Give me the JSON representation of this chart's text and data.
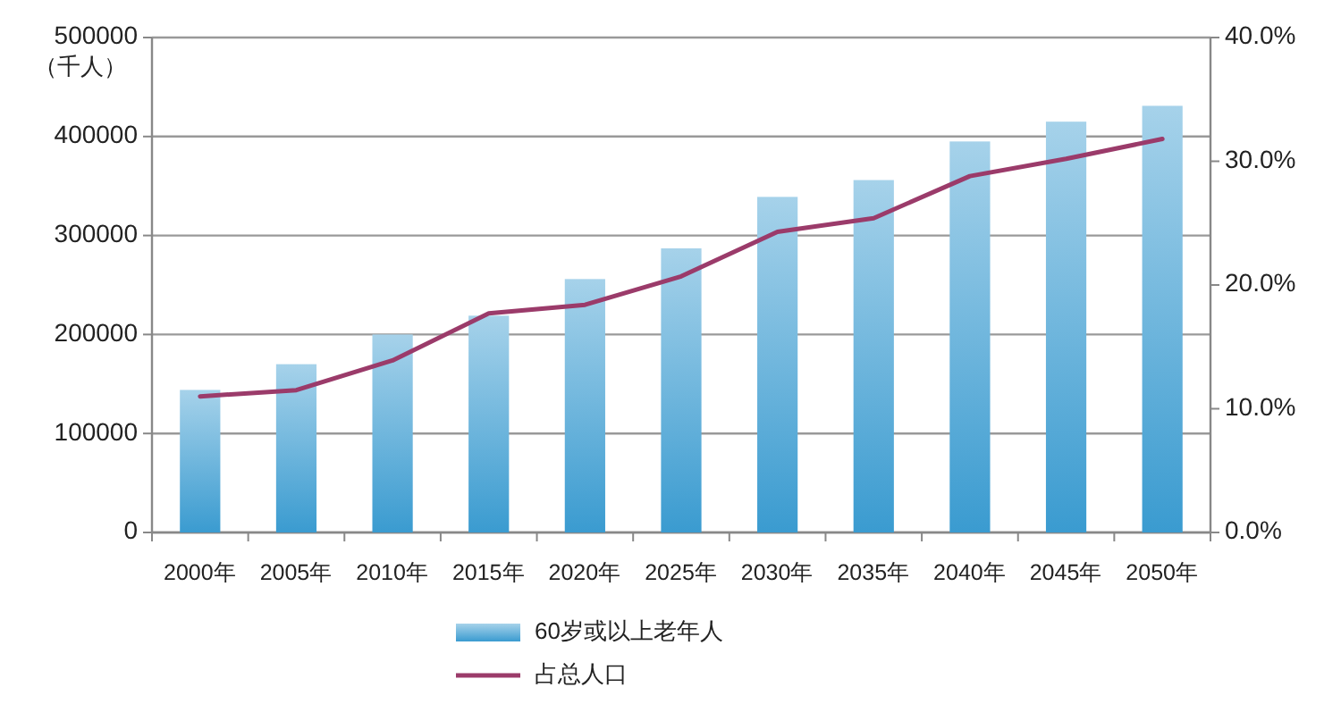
{
  "chart_data": {
    "type": "bar",
    "ylabel": "（千人）",
    "categories": [
      "2000年",
      "2005年",
      "2010年",
      "2015年",
      "2020年",
      "2025年",
      "2030年",
      "2035年",
      "2040年",
      "2045年",
      "2050年"
    ],
    "series": [
      {
        "name": "60岁或以上老年人",
        "color": "#3a9bd0",
        "values": [
          144000,
          170000,
          200000,
          219000,
          256000,
          287000,
          339000,
          356000,
          395000,
          415000,
          431000
        ]
      },
      {
        "name": "占总人口",
        "type": "line",
        "axis": "y2",
        "color": "#9b3b6a",
        "values": [
          11.0,
          11.5,
          13.9,
          17.7,
          18.4,
          20.7,
          24.3,
          25.4,
          28.8,
          30.2,
          31.8
        ]
      }
    ],
    "ylim": [
      0,
      500000
    ],
    "yticks": [
      0,
      100000,
      200000,
      300000,
      400000,
      500000
    ],
    "y2lim": [
      0,
      40
    ],
    "y2ticks": [
      {
        "value": 0,
        "label": "0.0%"
      },
      {
        "value": 10,
        "label": "10.0%"
      },
      {
        "value": 20,
        "label": "20.0%"
      },
      {
        "value": 30,
        "label": "30.0%"
      },
      {
        "value": 40,
        "label": "40.0%"
      }
    ],
    "grid": "y",
    "legend": "bottom",
    "marker": "none",
    "line_style": "solid"
  }
}
